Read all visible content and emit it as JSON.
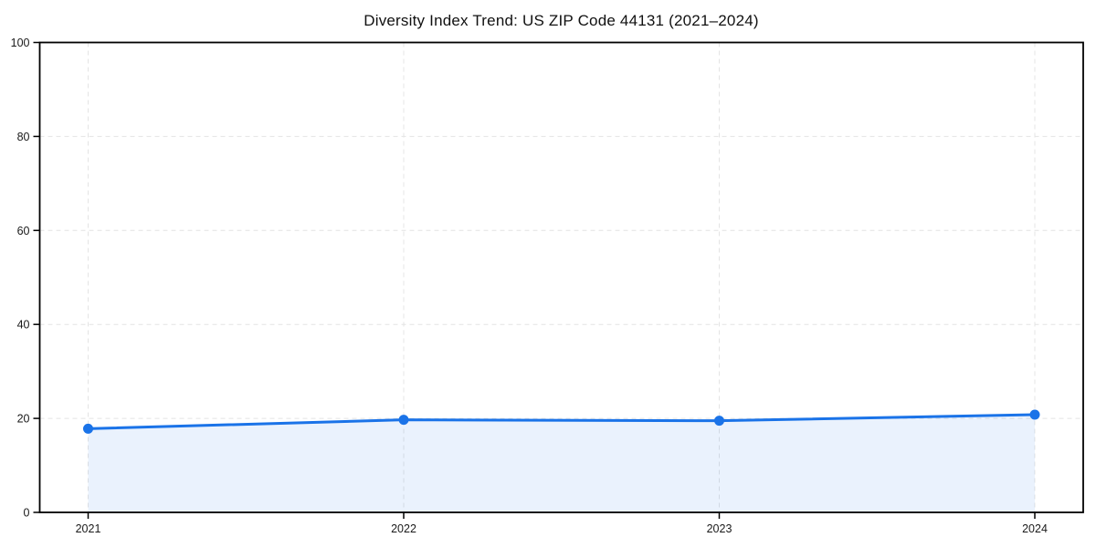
{
  "chart_data": {
    "type": "area",
    "title": "Diversity Index Trend: US ZIP Code 44131 (2021–2024)",
    "categories": [
      "2021",
      "2022",
      "2023",
      "2024"
    ],
    "values": [
      17.8,
      19.7,
      19.5,
      20.8
    ],
    "xlabel": "",
    "ylabel": "",
    "ylim": [
      0,
      100
    ],
    "yticks": [
      0,
      20,
      40,
      60,
      80,
      100
    ],
    "grid": "dashed",
    "legend": "none",
    "colors": {
      "line": "#1a73e8",
      "marker": "#1a73e8",
      "area_fill": "rgba(26,115,232,0.09)",
      "gridline": "#e4e4e4",
      "frame": "#000000",
      "tick_text": "#1a1a1a",
      "title_text": "#111111",
      "background": "#ffffff"
    }
  }
}
